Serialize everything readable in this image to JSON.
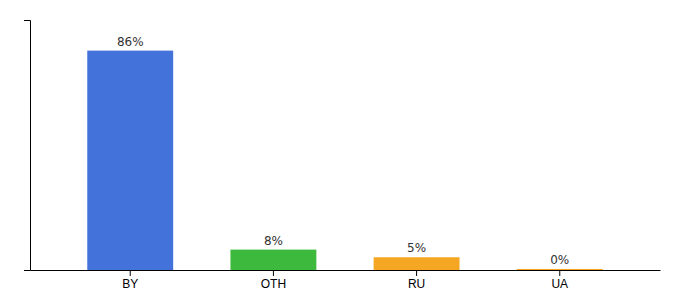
{
  "chart_data": {
    "type": "bar",
    "categories": [
      "BY",
      "OTH",
      "RU",
      "UA"
    ],
    "values": [
      86,
      8,
      5,
      0.4
    ],
    "value_labels": [
      "86%",
      "8%",
      "5%",
      "0%"
    ],
    "colors": [
      "#4472db",
      "#3dba3d",
      "#f5a623",
      "#f5a623"
    ],
    "ylim": [
      0,
      98
    ],
    "yticks": [],
    "data_labels": true,
    "tick_labels": "x",
    "grid": false
  }
}
